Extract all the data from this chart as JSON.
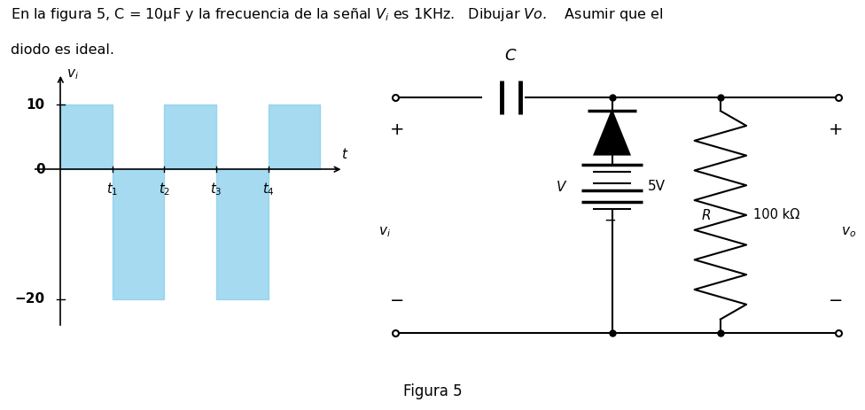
{
  "title_line1": "En la figura 5, C = 10μF y la frecuencia de la señal $V_i$ es 1KHz.   Dibujar $Vo$.    Asumir que el",
  "title_line2": "diodo es ideal.",
  "fig_caption": "Figura 5",
  "waveform": {
    "ylim": [
      -27,
      16
    ],
    "xlim": [
      -0.5,
      5.5
    ],
    "y_ticks": [
      -20,
      0,
      10
    ],
    "x_ticks": [
      1,
      2,
      3,
      4
    ],
    "x_tick_labels": [
      "$t_1$",
      "$t_2$",
      "$t_3$",
      "$t_4$"
    ],
    "ylabel": "$v_i$",
    "xlabel": "$t$",
    "bar_color": "#87CEEB",
    "bar_alpha": 0.75,
    "bars": [
      {
        "x0": 0,
        "x1": 1,
        "y_bot": 0,
        "y_top": 10
      },
      {
        "x0": 1,
        "x1": 2,
        "y_bot": -20,
        "y_top": 0
      },
      {
        "x0": 2,
        "x1": 3,
        "y_bot": 0,
        "y_top": 10
      },
      {
        "x0": 3,
        "x1": 4,
        "y_bot": -20,
        "y_top": 0
      },
      {
        "x0": 4,
        "x1": 5,
        "y_bot": 0,
        "y_top": 10
      }
    ]
  },
  "background_color": "#ffffff",
  "line_color": "#000000",
  "font_size_title": 11.5,
  "font_size_labels": 11
}
